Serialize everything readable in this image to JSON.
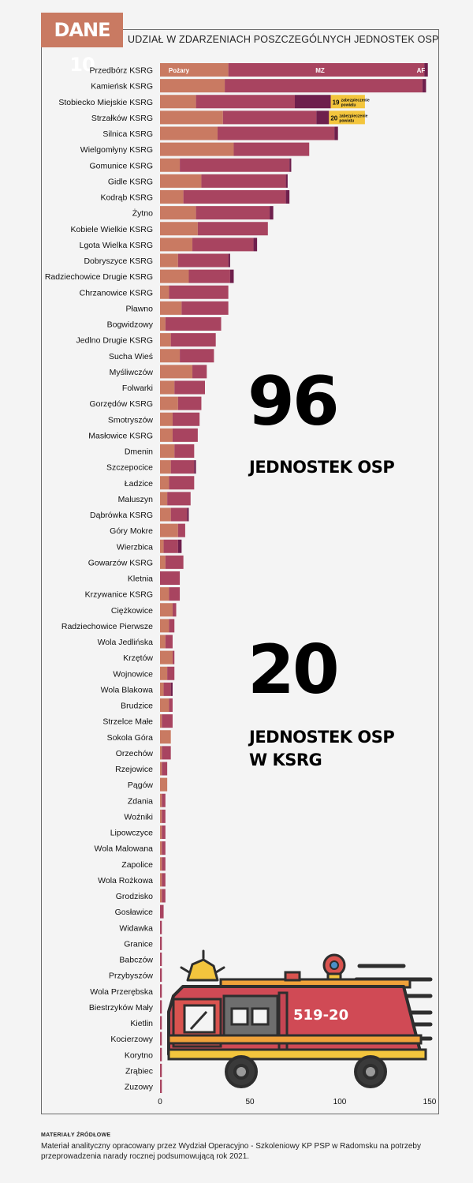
{
  "badge": "DANE 10",
  "header": "UDZIAŁ W ZDARZENIACH POSZCZEGÓLNYCH JEDNOSTEK OSP",
  "stat1": {
    "value": "96",
    "label": "JEDNOSTEK OSP"
  },
  "stat2": {
    "value": "20",
    "label_line1": "JEDNOSTEK OSP",
    "label_line2": "W KSRG"
  },
  "truck": {
    "plate": "519-20"
  },
  "source": {
    "title": "MATERIAŁY ŹRÓDŁOWE",
    "text": "Materiał analityczny opracowany przez Wydział Operacyjno - Szkoleniowy KP PSP w Radomsku na potrzeby przeprowadzenia narady rocznej podsumowującą rok 2021."
  },
  "colors": {
    "pozary": "#c97a62",
    "mz": "#a84460",
    "af": "#6e1f4c",
    "zab": "#f3c53d"
  },
  "chart_data": {
    "type": "bar",
    "orientation": "horizontal",
    "stacked": true,
    "xlim": [
      0,
      150
    ],
    "xticks": [
      0,
      50,
      100,
      150
    ],
    "series_labels": {
      "pozary": "Pożary",
      "mz": "MZ",
      "af": "AF"
    },
    "annotations": [
      {
        "category": "Stobiecko Miejskie KSRG",
        "number": "19",
        "text1": "zabezpieczenie",
        "text2": "powiatu"
      },
      {
        "category": "Strzałków KSRG",
        "number": "20",
        "text1": "zabezpieczenie",
        "text2": "powiatu"
      }
    ],
    "categories": [
      "Przedbórz KSRG",
      "Kamieńsk KSRG",
      "Stobiecko Miejskie KSRG",
      "Strzałków KSRG",
      "Silnica KSRG",
      "Wielgomłyny KSRG",
      "Gomunice KSRG",
      "Gidle KSRG",
      "Kodrąb KSRG",
      "Żytno",
      "Kobiele Wielkie KSRG",
      "Lgota Wielka KSRG",
      "Dobryszyce KSRG",
      "Radziechowice Drugie KSRG",
      "Chrzanowice KSRG",
      "Pławno",
      "Bogwidzowy",
      "Jedlno Drugie KSRG",
      "Sucha Wieś",
      "Myśliwczów",
      "Folwarki",
      "Gorzędów KSRG",
      "Smotryszów",
      "Masłowice KSRG",
      "Dmenin",
      "Szczepocice",
      "Ładzice",
      "Maluszyn",
      "Dąbrówka KSRG",
      "Góry Mokre",
      "Wierzbica",
      "Gowarzów KSRG",
      "Kletnia",
      "Krzywanice KSRG",
      "Ciężkowice",
      "Radziechowice Pierwsze",
      "Wola Jedlińska",
      "Krzętów",
      "Wojnowice",
      "Wola Blakowa",
      "Brudzice",
      "Strzelce Małe",
      "Sokola Góra",
      "Orzechów",
      "Rzejowice",
      "Pągów",
      "Zdania",
      "Woźniki",
      "Lipowczyce",
      "Wola Malowana",
      "Zapolice",
      "Wola Rożkowa",
      "Grodzisko",
      "Gosławice",
      "Widawka",
      "Granice",
      "Babczów",
      "Przybyszów",
      "Wola Przerębska",
      "Biestrzyków Mały",
      "Kietlin",
      "Kocierzowy",
      "Korytno",
      "Zrąbiec",
      "Zuzowy"
    ],
    "series": [
      {
        "key": "pozary",
        "values": [
          38,
          36,
          20,
          35,
          32,
          41,
          11,
          23,
          13,
          20,
          21,
          18,
          10,
          16,
          5,
          12,
          3,
          6,
          11,
          18,
          8,
          10,
          7,
          7,
          8,
          6,
          5,
          4,
          6,
          10,
          2,
          3,
          0,
          5,
          7,
          5,
          3,
          7,
          4,
          2,
          5,
          1,
          6,
          1,
          1,
          4,
          1,
          1,
          1,
          1,
          1,
          1,
          1,
          0,
          0,
          0,
          0,
          0,
          0,
          0,
          0,
          0,
          0,
          0,
          0
        ]
      },
      {
        "key": "mz",
        "values": [
          109,
          110,
          55,
          52,
          65,
          42,
          61,
          47,
          57,
          41,
          39,
          34,
          28,
          23,
          33,
          26,
          31,
          25,
          19,
          8,
          17,
          13,
          15,
          14,
          11,
          13,
          14,
          13,
          9,
          4,
          8,
          10,
          11,
          6,
          2,
          3,
          4,
          1,
          4,
          4,
          2,
          6,
          0,
          5,
          3,
          0,
          2,
          2,
          2,
          2,
          2,
          2,
          2,
          2,
          1,
          1,
          1,
          1,
          1,
          1,
          1,
          1,
          1,
          1,
          1
        ]
      },
      {
        "key": "af",
        "values": [
          2,
          2,
          20,
          7,
          2,
          0,
          1,
          1,
          2,
          2,
          0,
          2,
          1,
          2,
          0,
          0,
          0,
          0,
          0,
          0,
          0,
          0,
          0,
          0,
          0,
          1,
          0,
          0,
          1,
          0,
          2,
          0,
          0,
          0,
          0,
          0,
          0,
          0,
          0,
          1,
          0,
          0,
          0,
          0,
          0,
          0,
          0,
          0,
          0,
          0,
          0,
          0,
          0,
          0,
          0,
          0,
          0,
          0,
          0,
          0,
          0,
          0,
          0,
          0,
          0
        ]
      },
      {
        "key": "zab",
        "values": [
          0,
          0,
          19,
          20,
          0,
          0,
          0,
          0,
          0,
          0,
          0,
          0,
          0,
          0,
          0,
          0,
          0,
          0,
          0,
          0,
          0,
          0,
          0,
          0,
          0,
          0,
          0,
          0,
          0,
          0,
          0,
          0,
          0,
          0,
          0,
          0,
          0,
          0,
          0,
          0,
          0,
          0,
          0,
          0,
          0,
          0,
          0,
          0,
          0,
          0,
          0,
          0,
          0,
          0,
          0,
          0,
          0,
          0,
          0,
          0,
          0,
          0,
          0,
          0,
          0
        ]
      }
    ]
  }
}
